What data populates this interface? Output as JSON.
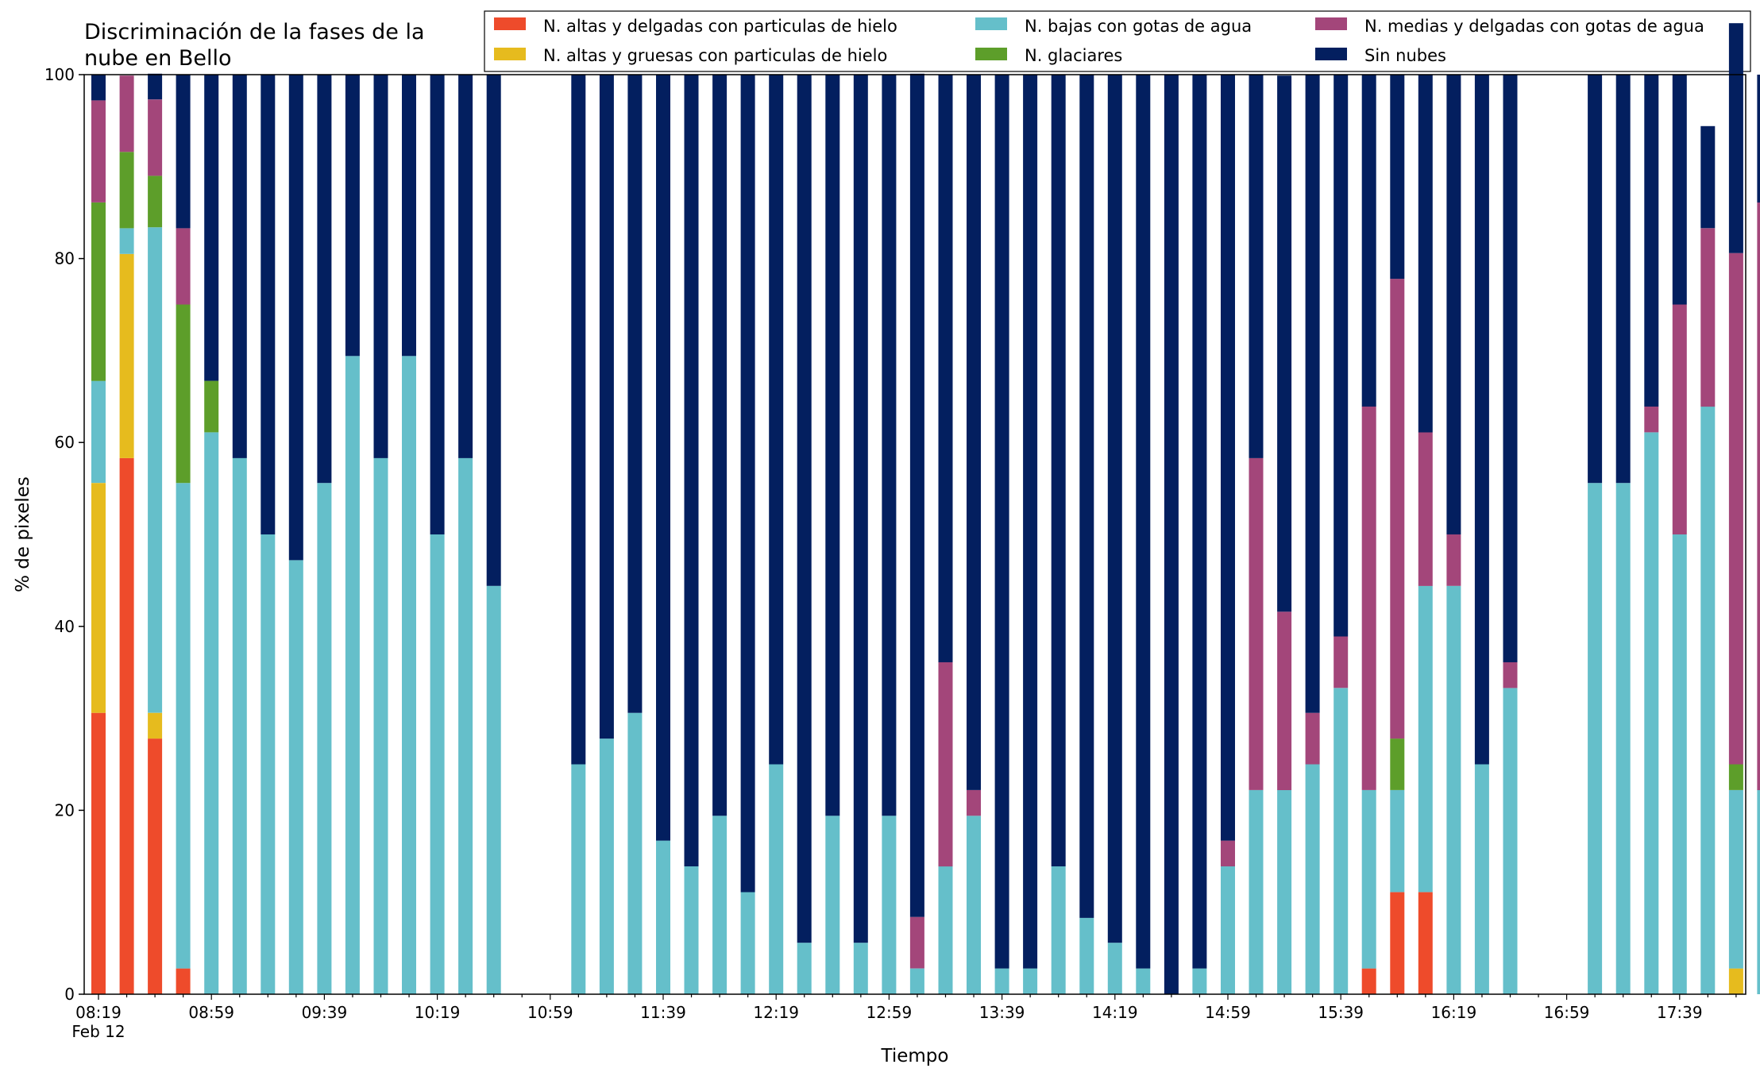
{
  "chart_data": {
    "type": "bar",
    "stacked": true,
    "title": "Discriminación de la fases de la nube en Bello",
    "title_lines": [
      "Discriminación de la fases de la",
      "nube en Bello"
    ],
    "xlabel": "Tiempo",
    "ylabel": "% de pixeles",
    "ylim": [
      0,
      100
    ],
    "yticks": [
      "0",
      "20",
      "40",
      "60",
      "80",
      "100"
    ],
    "xticks": [
      "08:19",
      "08:59",
      "09:39",
      "10:19",
      "10:59",
      "11:39",
      "12:19",
      "12:59",
      "13:39",
      "14:19",
      "14:59",
      "15:39",
      "16:19",
      "16:59",
      "17:39"
    ],
    "xtick_sublabel": "Feb 12",
    "grid": false,
    "legend_position": "top",
    "colors": {
      "altas_delgadas": "#ee4b2b",
      "altas_gruesas": "#e6bb1e",
      "bajas_agua": "#65bfca",
      "glaciares": "#5d9e2a",
      "medias_delgadas": "#a3467a",
      "sin_nubes": "#031f5f"
    },
    "series": [
      {
        "key": "altas_delgadas",
        "name": "N. altas y delgadas con particulas de hielo",
        "values": [
          30.6,
          58.3,
          27.8,
          2.8,
          0,
          0,
          0,
          0,
          0,
          0,
          0,
          0,
          0,
          0,
          0,
          null,
          null,
          0,
          0,
          0,
          0,
          0,
          0,
          0,
          0,
          0,
          0,
          0,
          0,
          0,
          0,
          0,
          0,
          0,
          0,
          0,
          0,
          0,
          0,
          0,
          0,
          0,
          0,
          0,
          0,
          2.8,
          11.1,
          11.1,
          0,
          0,
          0,
          null,
          null,
          0,
          0,
          0,
          0,
          0,
          0,
          0
        ]
      },
      {
        "key": "altas_gruesas",
        "name": "N. altas y gruesas con particulas de hielo",
        "values": [
          25,
          22.2,
          2.8,
          0,
          0,
          0,
          0,
          0,
          0,
          0,
          0,
          0,
          0,
          0,
          0,
          null,
          null,
          0,
          0,
          0,
          0,
          0,
          0,
          0,
          0,
          0,
          0,
          0,
          0,
          0,
          0,
          0,
          0,
          0,
          0,
          0,
          0,
          0,
          0,
          0,
          0,
          0,
          0,
          0,
          0,
          0,
          0,
          0,
          0,
          0,
          0,
          null,
          null,
          0,
          0,
          0,
          0,
          0,
          2.8,
          0,
          0
        ]
      },
      {
        "key": "bajas_agua",
        "name": "N. bajas con gotas de agua",
        "values": [
          11.1,
          2.8,
          52.8,
          52.8,
          61.1,
          58.3,
          50,
          47.2,
          55.6,
          69.4,
          58.3,
          69.4,
          50,
          58.3,
          44.4,
          null,
          null,
          25,
          27.8,
          30.6,
          16.7,
          13.9,
          19.4,
          11.1,
          25,
          5.6,
          19.4,
          5.6,
          19.4,
          2.8,
          13.9,
          19.4,
          2.8,
          2.8,
          13.9,
          8.3,
          5.6,
          2.8,
          0,
          2.8,
          13.9,
          22.2,
          22.2,
          25,
          33.3,
          19.4,
          11.1,
          33.3,
          44.4,
          25,
          33.3,
          null,
          null,
          55.6,
          55.6,
          61.1,
          50,
          63.9,
          19.4,
          22.2
        ]
      },
      {
        "key": "glaciares",
        "name": "N. glaciares",
        "values": [
          19.4,
          8.3,
          5.6,
          19.4,
          5.6,
          0,
          0,
          0,
          0,
          0,
          0,
          0,
          0,
          0,
          0,
          null,
          null,
          0,
          0,
          0,
          0,
          0,
          0,
          0,
          0,
          0,
          0,
          0,
          0,
          0,
          0,
          0,
          0,
          0,
          0,
          0,
          0,
          0,
          0,
          0,
          0,
          0,
          0,
          0,
          0,
          0,
          5.6,
          0,
          0,
          0,
          0,
          null,
          null,
          0,
          0,
          0,
          0,
          0,
          2.8,
          0,
          0
        ]
      },
      {
        "key": "medias_delgadas",
        "name": "N. medias y delgadas con gotas de agua",
        "values": [
          11.1,
          8.3,
          8.3,
          8.3,
          0,
          0,
          0,
          0,
          0,
          0,
          0,
          0,
          0,
          0,
          0,
          null,
          null,
          0,
          0,
          0,
          0,
          0,
          0,
          0,
          0,
          0,
          0,
          0,
          0,
          5.6,
          22.2,
          2.8,
          0,
          0,
          0,
          0,
          0,
          0,
          0,
          0,
          2.8,
          36.1,
          19.4,
          5.6,
          5.6,
          41.7,
          50,
          16.7,
          5.6,
          0,
          2.8,
          null,
          null,
          0,
          0,
          2.8,
          25,
          19.4,
          55.6,
          63.9
        ]
      },
      {
        "key": "sin_nubes",
        "name": "Sin nubes",
        "values": [
          2.8,
          0,
          2.8,
          16.7,
          33.3,
          41.7,
          50,
          52.8,
          44.4,
          30.6,
          41.7,
          30.6,
          50,
          41.7,
          55.6,
          null,
          null,
          75,
          72.2,
          69.4,
          83.3,
          86.1,
          80.6,
          88.9,
          75,
          94.4,
          80.6,
          94.4,
          80.6,
          91.7,
          63.9,
          77.8,
          97.2,
          97.2,
          86.1,
          91.7,
          94.4,
          97.2,
          100,
          97.2,
          83.3,
          41.7,
          58.3,
          69.4,
          61.1,
          36.1,
          22.2,
          38.9,
          50,
          75,
          63.9,
          null,
          null,
          44.4,
          44.4,
          36.1,
          25,
          11.1,
          25,
          13.9
        ]
      }
    ]
  }
}
